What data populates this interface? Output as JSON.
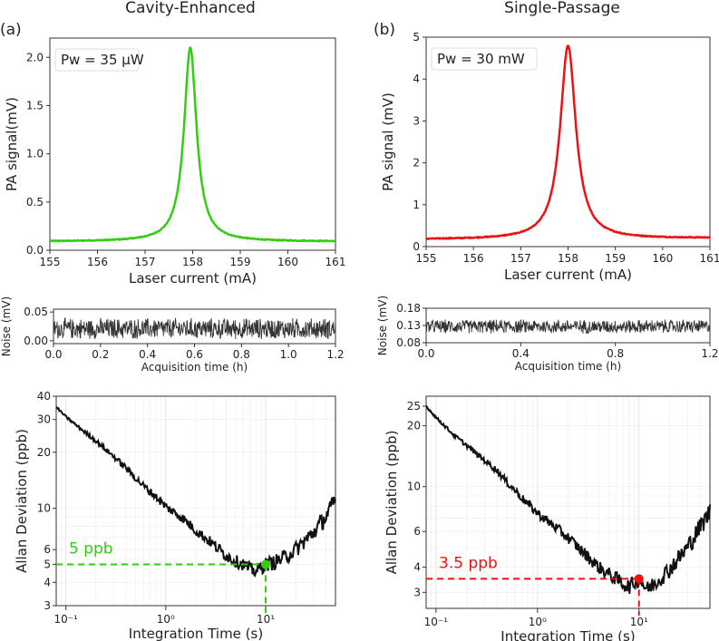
{
  "figure": {
    "titles": [
      "Cavity-Enhanced",
      "Single-Passage"
    ],
    "panel_labels": [
      "(a)",
      "(b)"
    ]
  },
  "chart_data": [
    {
      "id": "a-signal",
      "type": "line",
      "xlabel": "Laser current (mA)",
      "ylabel": "PA signal(mV)",
      "xlim": [
        155,
        161
      ],
      "ylim": [
        0,
        2.2
      ],
      "xticks": [
        155,
        156,
        157,
        158,
        159,
        160,
        161
      ],
      "yticks": [
        0.0,
        0.5,
        1.0,
        1.5,
        2.0
      ],
      "ytick_labels": [
        "0.0",
        "0.5",
        "1.0",
        "1.5",
        "2.0"
      ],
      "annotation": "Pw = 35 μW",
      "color": "#33cc11",
      "peak": {
        "x": 157.95,
        "y": 2.1
      },
      "baseline": 0.09,
      "hwhm": 0.16
    },
    {
      "id": "a-noise",
      "type": "line",
      "xlabel": "Acquisition time (h)",
      "ylabel": "Noise (mV)",
      "xlim": [
        0,
        1.2
      ],
      "ylim": [
        -0.005,
        0.055
      ],
      "xticks": [
        0.0,
        0.2,
        0.4,
        0.6,
        0.8,
        1.0,
        1.2
      ],
      "xtick_labels": [
        "0.0",
        "0.2",
        "0.4",
        "0.6",
        "0.8",
        "1.0",
        "1.2"
      ],
      "yticks": [
        0.0,
        0.05
      ],
      "ytick_labels": [
        "0.00",
        "0.05"
      ],
      "color": "#333333",
      "mean": 0.021,
      "spread": 0.02
    },
    {
      "id": "a-allan",
      "type": "line",
      "scale": "log-log",
      "xlabel": "Integration Time (s)",
      "ylabel": "Allan Deviation (ppb)",
      "xlim": [
        0.08,
        50
      ],
      "ylim": [
        3.0,
        40
      ],
      "yticks": [
        3,
        4,
        5,
        6,
        10,
        20,
        30,
        40
      ],
      "ytick_labels": [
        "3",
        "4",
        "5",
        "6",
        "10",
        "20",
        "30",
        "40"
      ],
      "xtick_labels": [
        "10⁻¹",
        "10⁰",
        "10¹"
      ],
      "x": [
        0.08,
        0.1,
        0.15,
        0.2,
        0.3,
        0.4,
        0.5,
        0.6,
        0.8,
        1.0,
        1.5,
        2.0,
        3.0,
        4.0,
        5.0,
        6.0,
        7.0,
        8.0,
        10,
        12,
        15,
        20,
        30,
        40,
        50
      ],
      "y": [
        35,
        31,
        26,
        23,
        19,
        16.5,
        14.5,
        13.2,
        11.5,
        10.2,
        8.8,
        7.6,
        6.4,
        5.6,
        5.2,
        5.0,
        4.7,
        4.6,
        5.0,
        5.1,
        5.4,
        6.0,
        7.4,
        9.0,
        11.0
      ],
      "color": "#111111",
      "annotation": "5 ppb",
      "marker": {
        "x": 10,
        "y": 5
      },
      "marker_color": "#33cc11"
    },
    {
      "id": "b-signal",
      "type": "line",
      "xlabel": "Laser current (mA)",
      "ylabel": "PA signal (mV)",
      "xlim": [
        155,
        161
      ],
      "ylim": [
        0,
        5
      ],
      "xticks": [
        155,
        156,
        157,
        158,
        159,
        160,
        161
      ],
      "yticks": [
        0,
        1,
        2,
        3,
        4,
        5
      ],
      "ytick_labels": [
        "0",
        "1",
        "2",
        "3",
        "4",
        "5"
      ],
      "annotation": "Pw = 30 mW",
      "color": "#ee1111",
      "peak": {
        "x": 158.0,
        "y": 4.8
      },
      "baseline": 0.17,
      "hwhm": 0.2
    },
    {
      "id": "b-noise",
      "type": "line",
      "xlabel": "Acquisition time (h)",
      "ylabel": "Noise (mV)",
      "xlim": [
        0,
        1.2
      ],
      "ylim": [
        0.08,
        0.18
      ],
      "xticks": [
        0.0,
        0.4,
        0.8,
        1.2
      ],
      "xtick_labels": [
        "0.0",
        "0.4",
        "0.8",
        "1.2"
      ],
      "yticks": [
        0.08,
        0.13,
        0.18
      ],
      "ytick_labels": [
        "0.08",
        "0.13",
        "0.18"
      ],
      "color": "#333333",
      "mean": 0.127,
      "spread": 0.022
    },
    {
      "id": "b-allan",
      "type": "line",
      "scale": "log-log",
      "xlabel": "Integration Time (s)",
      "ylabel": "Allan Deviation (ppb)",
      "xlim": [
        0.08,
        50
      ],
      "ylim": [
        2.5,
        28
      ],
      "yticks": [
        3,
        4,
        6,
        10,
        20,
        25
      ],
      "ytick_labels": [
        "3",
        "4",
        "6",
        "10",
        "20",
        "25"
      ],
      "xtick_labels": [
        "10⁻¹",
        "10⁰",
        "10¹"
      ],
      "x": [
        0.08,
        0.1,
        0.15,
        0.2,
        0.3,
        0.4,
        0.5,
        0.6,
        0.8,
        1.0,
        1.5,
        2.0,
        3.0,
        4.0,
        5.0,
        6.0,
        7.0,
        8.0,
        10,
        12,
        15,
        20,
        30,
        40,
        50
      ],
      "y": [
        25,
        22,
        18,
        16,
        13.5,
        12,
        10.5,
        9.6,
        8.2,
        7.4,
        6.3,
        5.6,
        4.6,
        4.0,
        3.7,
        3.5,
        3.3,
        3.2,
        3.5,
        3.1,
        3.4,
        3.9,
        5.0,
        6.3,
        7.5
      ],
      "color": "#111111",
      "annotation": "3.5 ppb",
      "marker": {
        "x": 10,
        "y": 3.5
      },
      "marker_color": "#ee1111"
    }
  ]
}
